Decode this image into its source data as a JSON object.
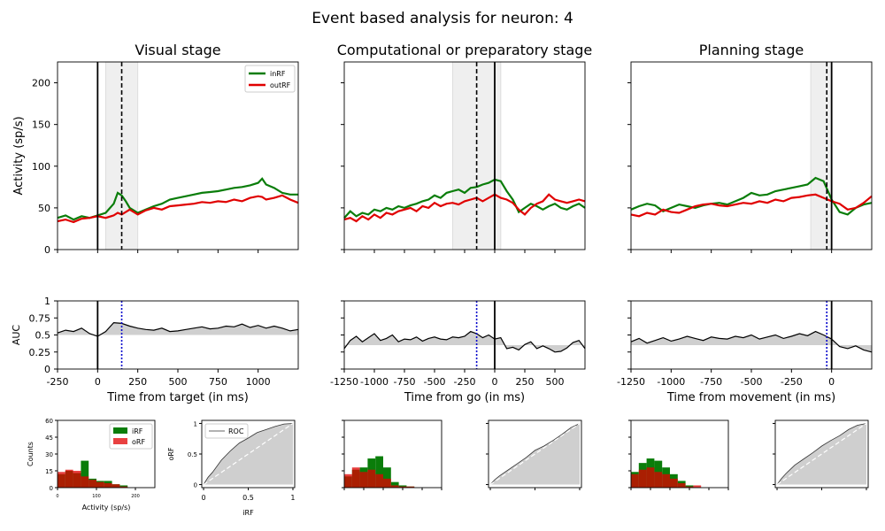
{
  "suptitle": "Event based analysis for neuron: 4",
  "colors": {
    "inRF": "#0a7d0a",
    "outRF": "#e00000",
    "shade": "#cfcfcf",
    "window": "#efefef",
    "auc_line": "#000000",
    "marker": "#0000cc"
  },
  "panels": [
    {
      "title": "Visual stage",
      "xlabel": "Time from target (in ms)",
      "xlim": [
        -250,
        1250
      ],
      "xticks": [
        -250,
        0,
        250,
        500,
        750,
        1000
      ],
      "event_x": 0,
      "dashed_x": 150,
      "window": [
        50,
        250
      ],
      "auc_marker_x": 150,
      "activity": {
        "x": [
          -250,
          -200,
          -150,
          -100,
          -50,
          0,
          50,
          100,
          125,
          150,
          175,
          200,
          250,
          300,
          350,
          400,
          450,
          500,
          550,
          600,
          650,
          700,
          750,
          800,
          850,
          900,
          950,
          1000,
          1025,
          1050,
          1100,
          1150,
          1200,
          1250
        ],
        "inRF": [
          38,
          41,
          36,
          40,
          38,
          41,
          44,
          55,
          68,
          65,
          58,
          50,
          44,
          48,
          52,
          55,
          60,
          62,
          64,
          66,
          68,
          69,
          70,
          72,
          74,
          75,
          77,
          80,
          85,
          78,
          74,
          68,
          66,
          66
        ],
        "outRF": [
          34,
          36,
          33,
          37,
          38,
          40,
          38,
          41,
          44,
          42,
          45,
          48,
          42,
          47,
          50,
          48,
          52,
          53,
          54,
          55,
          57,
          56,
          58,
          57,
          60,
          58,
          62,
          64,
          63,
          60,
          62,
          65,
          60,
          56
        ]
      },
      "auc": {
        "x": [
          -250,
          -200,
          -150,
          -100,
          -50,
          0,
          50,
          100,
          150,
          200,
          250,
          300,
          350,
          400,
          450,
          500,
          550,
          600,
          650,
          700,
          750,
          800,
          850,
          900,
          950,
          1000,
          1050,
          1100,
          1150,
          1200,
          1250
        ],
        "value": [
          0.53,
          0.57,
          0.55,
          0.6,
          0.52,
          0.48,
          0.55,
          0.68,
          0.67,
          0.63,
          0.6,
          0.58,
          0.57,
          0.6,
          0.55,
          0.56,
          0.58,
          0.6,
          0.62,
          0.59,
          0.6,
          0.63,
          0.62,
          0.66,
          0.61,
          0.64,
          0.6,
          0.63,
          0.6,
          0.56,
          0.58
        ]
      },
      "hist": {
        "ylabel": "Counts",
        "xlabel": "Activity (sp/s)",
        "yticks": [
          "0",
          "15",
          "30",
          "45",
          "60"
        ],
        "xticks": [
          "0",
          "100",
          "200"
        ],
        "legend": [
          "iRF",
          "oRF"
        ],
        "bin_edges": [
          0,
          20,
          40,
          60,
          80,
          100,
          120,
          140,
          160,
          180
        ],
        "iRF": [
          12,
          15,
          13,
          24,
          8,
          6,
          6,
          3,
          2
        ],
        "oRF": [
          14,
          16,
          15,
          10,
          7,
          5,
          4,
          3,
          1
        ]
      },
      "roc": {
        "xlabel": "iRF",
        "ylabel": "oRF",
        "legend": "ROC",
        "xticks": [
          "0",
          "0.5",
          "1"
        ],
        "yticks": [
          "0",
          "0.5",
          "1"
        ],
        "x": [
          0,
          0.05,
          0.1,
          0.2,
          0.3,
          0.4,
          0.5,
          0.6,
          0.7,
          0.8,
          0.9,
          1.0
        ],
        "y": [
          0,
          0.12,
          0.2,
          0.4,
          0.55,
          0.68,
          0.76,
          0.85,
          0.9,
          0.95,
          0.99,
          1.0
        ]
      }
    },
    {
      "title": "Computational or preparatory stage",
      "xlabel": "Time from go (in ms)",
      "xlim": [
        -1250,
        750
      ],
      "xticks": [
        -1250,
        -1000,
        -750,
        -500,
        -250,
        0,
        250,
        500
      ],
      "event_x": 0,
      "dashed_x": -150,
      "window": [
        -350,
        50
      ],
      "auc_marker_x": -150,
      "activity": {
        "x": [
          -1250,
          -1200,
          -1150,
          -1100,
          -1050,
          -1000,
          -950,
          -900,
          -850,
          -800,
          -750,
          -700,
          -650,
          -600,
          -550,
          -500,
          -450,
          -400,
          -350,
          -300,
          -250,
          -200,
          -150,
          -100,
          -50,
          0,
          50,
          100,
          150,
          200,
          250,
          300,
          350,
          400,
          450,
          500,
          550,
          600,
          650,
          700,
          750
        ],
        "inRF": [
          38,
          46,
          40,
          44,
          42,
          48,
          46,
          50,
          48,
          52,
          50,
          53,
          55,
          58,
          60,
          65,
          62,
          68,
          70,
          72,
          68,
          74,
          75,
          78,
          80,
          84,
          82,
          70,
          60,
          45,
          50,
          55,
          52,
          48,
          52,
          55,
          50,
          48,
          52,
          55,
          50
        ],
        "outRF": [
          36,
          38,
          34,
          40,
          36,
          42,
          38,
          44,
          42,
          46,
          48,
          50,
          46,
          52,
          50,
          56,
          52,
          55,
          56,
          54,
          58,
          60,
          62,
          58,
          62,
          66,
          62,
          60,
          56,
          48,
          42,
          50,
          55,
          58,
          66,
          60,
          58,
          56,
          58,
          60,
          58
        ]
      },
      "auc": {
        "x": [
          -1250,
          -1200,
          -1150,
          -1100,
          -1050,
          -1000,
          -950,
          -900,
          -850,
          -800,
          -750,
          -700,
          -650,
          -600,
          -550,
          -500,
          -450,
          -400,
          -350,
          -300,
          -250,
          -200,
          -150,
          -100,
          -50,
          0,
          50,
          100,
          150,
          200,
          250,
          300,
          350,
          400,
          450,
          500,
          550,
          600,
          650,
          700,
          750
        ],
        "value": [
          0.3,
          0.42,
          0.48,
          0.4,
          0.46,
          0.52,
          0.42,
          0.45,
          0.5,
          0.4,
          0.44,
          0.43,
          0.47,
          0.41,
          0.45,
          0.47,
          0.44,
          0.43,
          0.47,
          0.46,
          0.48,
          0.55,
          0.52,
          0.46,
          0.5,
          0.44,
          0.46,
          0.3,
          0.32,
          0.28,
          0.36,
          0.4,
          0.3,
          0.34,
          0.3,
          0.25,
          0.26,
          0.31,
          0.39,
          0.42,
          0.3
        ]
      },
      "hist": {
        "bin_edges": [
          0,
          20,
          40,
          60,
          80,
          100,
          120,
          140,
          160,
          180
        ],
        "iRF": [
          10,
          16,
          18,
          26,
          28,
          18,
          5,
          2,
          1
        ],
        "oRF": [
          12,
          18,
          14,
          16,
          12,
          8,
          2,
          1,
          1
        ]
      },
      "roc": {
        "x": [
          0,
          0.05,
          0.1,
          0.2,
          0.3,
          0.4,
          0.5,
          0.6,
          0.7,
          0.8,
          0.9,
          1.0
        ],
        "y": [
          0,
          0.08,
          0.14,
          0.24,
          0.34,
          0.44,
          0.56,
          0.63,
          0.72,
          0.82,
          0.93,
          1.0
        ]
      }
    },
    {
      "title": "Planning stage",
      "xlabel": "Time from movement (in ms)",
      "xlim": [
        -1250,
        250
      ],
      "xticks": [
        -1250,
        -1000,
        -750,
        -500,
        -250,
        0
      ],
      "event_x": 0,
      "dashed_x": -30,
      "window": [
        -130,
        0
      ],
      "auc_marker_x": -30,
      "activity": {
        "x": [
          -1250,
          -1200,
          -1150,
          -1100,
          -1050,
          -1000,
          -950,
          -900,
          -850,
          -800,
          -750,
          -700,
          -650,
          -600,
          -550,
          -500,
          -450,
          -400,
          -350,
          -300,
          -250,
          -200,
          -150,
          -100,
          -50,
          0,
          50,
          100,
          150,
          200,
          250
        ],
        "inRF": [
          48,
          52,
          55,
          53,
          46,
          50,
          54,
          52,
          50,
          53,
          55,
          56,
          54,
          58,
          62,
          68,
          65,
          66,
          70,
          72,
          74,
          76,
          78,
          86,
          82,
          60,
          45,
          42,
          50,
          54,
          56
        ],
        "outRF": [
          42,
          40,
          44,
          42,
          48,
          45,
          44,
          48,
          52,
          54,
          55,
          53,
          52,
          54,
          56,
          55,
          58,
          56,
          60,
          58,
          62,
          63,
          65,
          66,
          62,
          58,
          55,
          48,
          50,
          56,
          64
        ]
      },
      "auc": {
        "x": [
          -1250,
          -1200,
          -1150,
          -1100,
          -1050,
          -1000,
          -950,
          -900,
          -850,
          -800,
          -750,
          -700,
          -650,
          -600,
          -550,
          -500,
          -450,
          -400,
          -350,
          -300,
          -250,
          -200,
          -150,
          -100,
          -50,
          0,
          50,
          100,
          150,
          200,
          250
        ],
        "value": [
          0.4,
          0.45,
          0.38,
          0.42,
          0.46,
          0.41,
          0.44,
          0.48,
          0.45,
          0.42,
          0.47,
          0.45,
          0.44,
          0.48,
          0.46,
          0.5,
          0.44,
          0.47,
          0.5,
          0.45,
          0.48,
          0.52,
          0.49,
          0.55,
          0.5,
          0.44,
          0.33,
          0.3,
          0.34,
          0.28,
          0.25
        ]
      },
      "hist": {
        "bin_edges": [
          0,
          20,
          40,
          60,
          80,
          100,
          120,
          140,
          160,
          180
        ],
        "iRF": [
          14,
          22,
          26,
          24,
          18,
          12,
          6,
          2,
          0
        ],
        "oRF": [
          12,
          16,
          18,
          14,
          12,
          8,
          4,
          1,
          2
        ]
      },
      "roc": {
        "x": [
          0,
          0.05,
          0.1,
          0.2,
          0.3,
          0.4,
          0.5,
          0.6,
          0.7,
          0.8,
          0.9,
          1.0
        ],
        "y": [
          0,
          0.1,
          0.18,
          0.32,
          0.42,
          0.52,
          0.63,
          0.72,
          0.8,
          0.9,
          0.97,
          1.0
        ]
      }
    }
  ],
  "activity_ylabel": "Activity (sp/s)",
  "activity_ylim": [
    0,
    225
  ],
  "activity_yticks": [
    0,
    50,
    100,
    150,
    200
  ],
  "activity_legend": [
    "inRF",
    "outRF"
  ],
  "auc_ylabel": "AUC",
  "auc_ylim": [
    0,
    1
  ],
  "auc_baseline": 0.5,
  "auc_yticks": [
    "0",
    "0.25",
    "0.5",
    "0.75",
    "1"
  ],
  "hist_ylim": [
    0,
    60
  ],
  "hist_xlim": [
    0,
    250
  ]
}
